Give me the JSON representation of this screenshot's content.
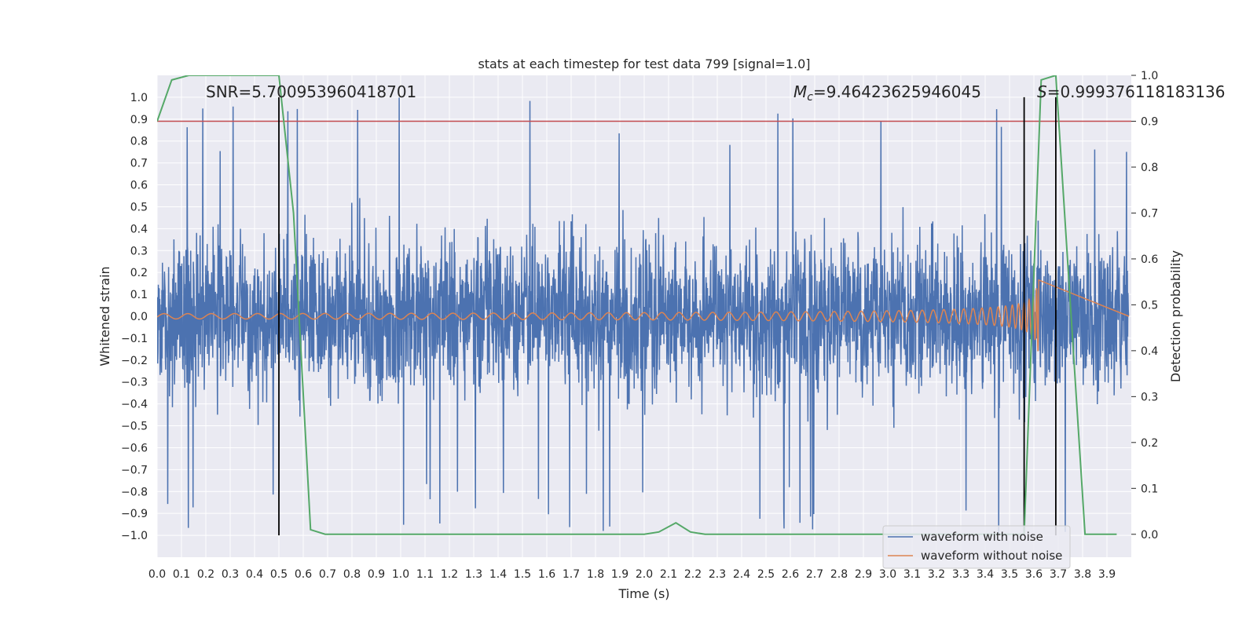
{
  "chart_data": {
    "type": "line",
    "title": "stats at each timestep for test data 799 [signal=1.0]",
    "xlabel": "Time (s)",
    "ylabel": "Whitened strain",
    "y2label": "Detection probability",
    "xlim": [
      0.0,
      4.0
    ],
    "ylim": [
      -1.1,
      1.1
    ],
    "y2lim": [
      -0.05,
      1.0
    ],
    "x_ticks": [
      "0.0",
      "0.1",
      "0.2",
      "0.3",
      "0.4",
      "0.5",
      "0.6",
      "0.7",
      "0.8",
      "0.9",
      "1.0",
      "1.1",
      "1.2",
      "1.3",
      "1.4",
      "1.5",
      "1.6",
      "1.7",
      "1.8",
      "1.9",
      "2.0",
      "2.1",
      "2.2",
      "2.3",
      "2.4",
      "2.5",
      "2.6",
      "2.7",
      "2.8",
      "2.9",
      "3.0",
      "3.1",
      "3.2",
      "3.3",
      "3.4",
      "3.5",
      "3.6",
      "3.7",
      "3.8",
      "3.9"
    ],
    "y_ticks": [
      "1.0",
      "0.9",
      "0.8",
      "0.7",
      "0.6",
      "0.5",
      "0.4",
      "0.3",
      "0.2",
      "0.1",
      "0.0",
      "−0.1",
      "−0.2",
      "−0.3",
      "−0.4",
      "−0.5",
      "−0.6",
      "−0.7",
      "−0.8",
      "−0.9",
      "−1.0"
    ],
    "y2_ticks": [
      "1.0",
      "0.9",
      "0.8",
      "0.7",
      "0.6",
      "0.5",
      "0.4",
      "0.3",
      "0.2",
      "0.1",
      "0.0"
    ],
    "grid": true,
    "legend_position": "bottom-right",
    "series": [
      {
        "name": "waveform with noise",
        "color": "#4c72b0",
        "axis": "left",
        "description": "dense noisy strain trace, amplitude roughly within ±0.6 with spikes to ±1.0"
      },
      {
        "name": "waveform without noise",
        "color": "#dd8452",
        "axis": "left",
        "description": "chirp oscillation, amplitude growing from ~0.01 to ~0.2 between 0.0 s and 3.62 s"
      }
    ],
    "detection_probability": {
      "color": "#55a868",
      "axis": "right",
      "x": [
        0.0,
        0.06,
        0.13,
        0.2,
        0.3,
        0.4,
        0.5,
        0.56,
        0.63,
        0.69,
        0.8,
        1.0,
        1.5,
        2.0,
        2.06,
        2.13,
        2.19,
        2.25,
        2.5,
        3.0,
        3.5,
        3.56,
        3.63,
        3.69,
        3.75,
        3.81,
        3.88,
        3.94
      ],
      "y": [
        0.9,
        0.99,
        1.0,
        1.0,
        1.0,
        1.0,
        1.0,
        0.7,
        0.01,
        0.0,
        0.0,
        0.0,
        0.0,
        0.0,
        0.005,
        0.025,
        0.005,
        0.0,
        0.0,
        0.0,
        0.0,
        0.0,
        0.99,
        1.0,
        0.5,
        0.0,
        0.0,
        0.0
      ]
    },
    "threshold_line": {
      "value": 0.9,
      "axis": "right",
      "color": "#c44e52"
    },
    "vertical_markers": [
      0.5,
      3.56,
      3.69
    ],
    "annotations": {
      "snr": "SNR=5.700953960418701",
      "mc_symbol": "M",
      "mc_sub": "c",
      "mc_value": "=9.46423625946045",
      "s_symbol": "S",
      "s_value": "=0.999376118183136"
    }
  }
}
